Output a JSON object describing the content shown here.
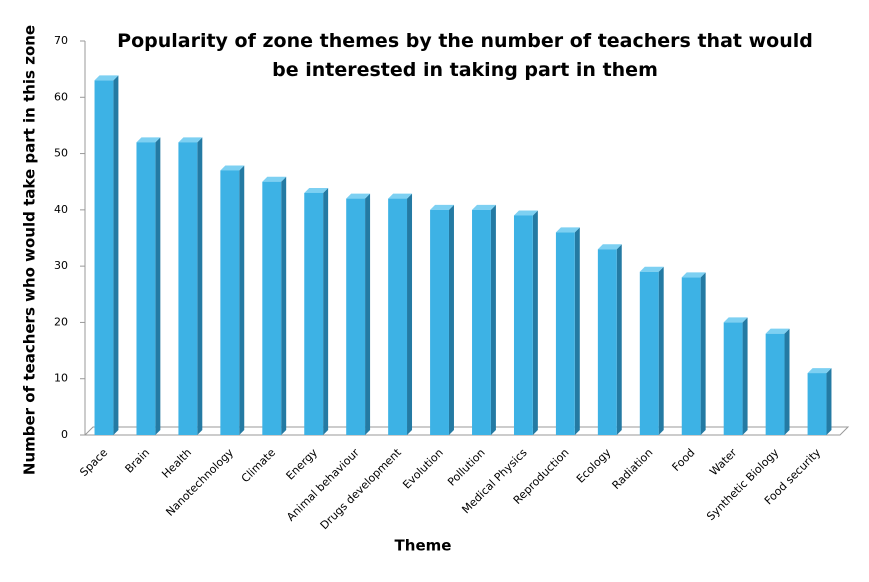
{
  "chart_data": {
    "type": "bar",
    "title": "Popularity of zone themes by the number of teachers that would be interested in taking part in them",
    "x_label": "Theme",
    "y_label": "Number of teachers who would take part in this zone",
    "categories": [
      "Space",
      "Brain",
      "Health",
      "Nanotechnology",
      "Climate",
      "Energy",
      "Animal behaviour",
      "Drugs development",
      "Evolution",
      "Pollution",
      "Medical Physics",
      "Reproduction",
      "Ecology",
      "Radiation",
      "Food",
      "Water",
      "Synthetic Biology",
      "Food security"
    ],
    "values": [
      63,
      52,
      52,
      47,
      45,
      43,
      42,
      42,
      40,
      40,
      39,
      36,
      33,
      29,
      28,
      20,
      18,
      11
    ],
    "color": "#3db2e5",
    "ylim": [
      0,
      70
    ],
    "yticks": [
      0,
      10,
      20,
      30,
      40,
      50,
      60,
      70
    ],
    "grid": false
  }
}
